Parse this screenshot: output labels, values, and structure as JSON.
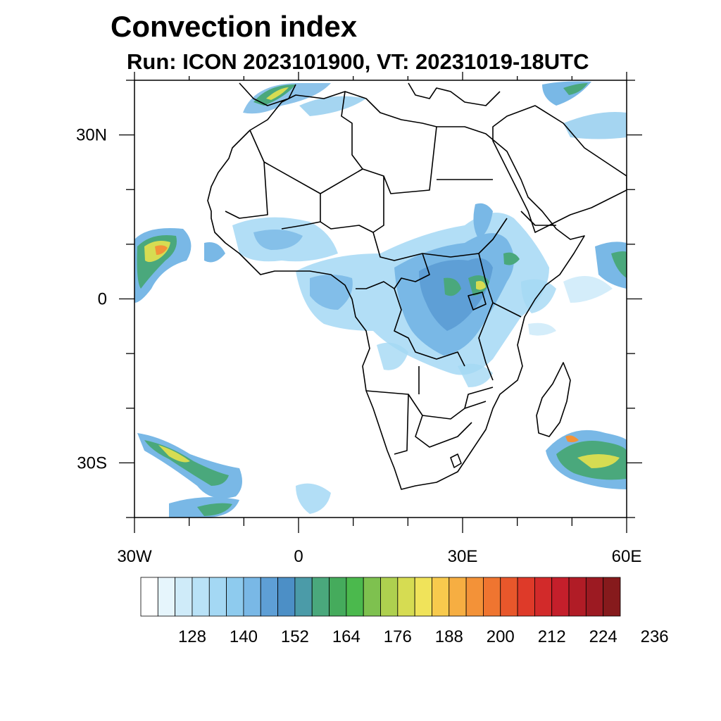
{
  "title": "Convection index",
  "subtitle": "Run: ICON 2023101900,  VT: 20231019-18UTC",
  "map": {
    "lon_range": [
      -30,
      60
    ],
    "lat_range": [
      -40,
      40
    ],
    "lat_ticks": [
      {
        "value": 30,
        "label": "30N"
      },
      {
        "value": 0,
        "label": "0"
      },
      {
        "value": -30,
        "label": "30S"
      }
    ],
    "lon_ticks": [
      {
        "value": -30,
        "label": "30W"
      },
      {
        "value": 0,
        "label": "0"
      },
      {
        "value": 30,
        "label": "30E"
      },
      {
        "value": 60,
        "label": "60E"
      }
    ]
  },
  "colorbar": {
    "colors": [
      "#ffffff",
      "#e6f5fc",
      "#cfebf9",
      "#b9e2f7",
      "#a4d8f4",
      "#8ecbee",
      "#79b8e6",
      "#5e9fd6",
      "#4c8fc6",
      "#4b9ba8",
      "#4aa87c",
      "#45ab5c",
      "#4bb94d",
      "#7ec14f",
      "#aed04f",
      "#d6dc52",
      "#f0e35a",
      "#f8ca4d",
      "#f6ae42",
      "#f39238",
      "#ef7530",
      "#e8572b",
      "#de3a29",
      "#d22a2a",
      "#c41f2b",
      "#b11c26",
      "#9c1a22",
      "#861a1c"
    ],
    "labels": [
      "128",
      "140",
      "152",
      "164",
      "176",
      "188",
      "200",
      "212",
      "224",
      "236"
    ]
  }
}
